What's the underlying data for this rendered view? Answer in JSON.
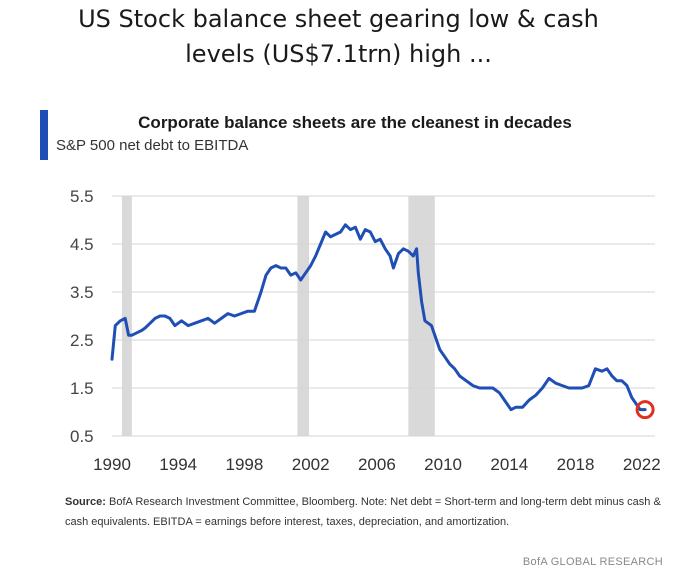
{
  "headline": {
    "line1": "US Stock balance sheet gearing low & cash",
    "line2": "levels (US$7.1trn) high ..."
  },
  "chart_data": {
    "type": "line",
    "title": "Corporate balance sheets are the cleanest in decades",
    "subtitle": "S&P 500 net debt to EBITDA",
    "xlabel": "",
    "ylabel": "",
    "xlim": [
      1990,
      2022.8
    ],
    "ylim": [
      0.5,
      5.5
    ],
    "y_ticks": [
      "5.5",
      "4.5",
      "3.5",
      "2.5",
      "1.5",
      "0.5"
    ],
    "x_ticks": [
      "1990",
      "1994",
      "1998",
      "2002",
      "2006",
      "2010",
      "2014",
      "2018",
      "2022"
    ],
    "grid": true,
    "legend": "none",
    "recession_bands": [
      [
        1990.6,
        1991.2
      ],
      [
        2001.2,
        2001.9
      ],
      [
        2007.9,
        2009.5
      ]
    ],
    "series": [
      {
        "color": "#1f4fb5",
        "x": [
          1990.0,
          1990.2,
          1990.5,
          1990.8,
          1991.0,
          1991.2,
          1991.5,
          1991.8,
          1992.0,
          1992.3,
          1992.6,
          1992.9,
          1993.2,
          1993.5,
          1993.8,
          1994.2,
          1994.6,
          1995.0,
          1995.4,
          1995.8,
          1996.2,
          1996.6,
          1997.0,
          1997.4,
          1997.8,
          1998.2,
          1998.6,
          1999.0,
          1999.3,
          1999.6,
          1999.9,
          2000.2,
          2000.5,
          2000.8,
          2001.1,
          2001.4,
          2001.7,
          2002.0,
          2002.3,
          2002.6,
          2002.9,
          2003.2,
          2003.5,
          2003.8,
          2004.1,
          2004.4,
          2004.7,
          2005.0,
          2005.3,
          2005.6,
          2005.9,
          2006.2,
          2006.5,
          2006.8,
          2007.0,
          2007.3,
          2007.6,
          2007.9,
          2008.2,
          2008.4,
          2008.5,
          2008.7,
          2008.9,
          2009.1,
          2009.3,
          2009.5,
          2009.8,
          2010.1,
          2010.4,
          2010.7,
          2011.0,
          2011.4,
          2011.8,
          2012.2,
          2012.6,
          2013.0,
          2013.4,
          2013.8,
          2014.1,
          2014.4,
          2014.8,
          2015.2,
          2015.6,
          2016.0,
          2016.4,
          2016.8,
          2017.2,
          2017.6,
          2018.0,
          2018.4,
          2018.8,
          2019.2,
          2019.6,
          2019.9,
          2020.2,
          2020.5,
          2020.8,
          2021.1,
          2021.4,
          2021.7,
          2021.9,
          2022.2
        ],
        "y": [
          2.1,
          2.8,
          2.9,
          2.95,
          2.6,
          2.6,
          2.65,
          2.7,
          2.75,
          2.85,
          2.95,
          3.0,
          3.0,
          2.95,
          2.8,
          2.9,
          2.8,
          2.85,
          2.9,
          2.95,
          2.85,
          2.95,
          3.05,
          3.0,
          3.05,
          3.1,
          3.1,
          3.5,
          3.85,
          4.0,
          4.05,
          4.0,
          4.0,
          3.85,
          3.9,
          3.75,
          3.9,
          4.05,
          4.25,
          4.5,
          4.75,
          4.65,
          4.7,
          4.75,
          4.9,
          4.8,
          4.85,
          4.6,
          4.8,
          4.75,
          4.55,
          4.6,
          4.4,
          4.25,
          4.0,
          4.3,
          4.4,
          4.35,
          4.25,
          4.4,
          3.9,
          3.3,
          2.9,
          2.85,
          2.8,
          2.6,
          2.3,
          2.15,
          2.0,
          1.9,
          1.75,
          1.65,
          1.55,
          1.5,
          1.5,
          1.5,
          1.4,
          1.2,
          1.05,
          1.1,
          1.1,
          1.25,
          1.35,
          1.5,
          1.7,
          1.6,
          1.55,
          1.5,
          1.5,
          1.5,
          1.55,
          1.9,
          1.85,
          1.9,
          1.75,
          1.65,
          1.65,
          1.55,
          1.3,
          1.15,
          1.05,
          1.05
        ]
      }
    ],
    "annotations": [
      {
        "type": "circle-marker",
        "x": 2022.2,
        "y": 1.05,
        "color": "#e03020"
      }
    ]
  },
  "source": {
    "label": "Source:",
    "text": "BofA Research Investment Committee, Bloomberg. Note: Net debt = Short-term and long-term debt minus cash & cash equivalents. EBITDA = earnings before interest, taxes, depreciation, and amortization."
  },
  "footer": "BofA GLOBAL RESEARCH",
  "colors": {
    "line": "#1f4fb5",
    "recession": "#d9d9d9",
    "grid": "#d5d5d5",
    "accent": "#1f4fb5",
    "marker": "#e03020"
  }
}
